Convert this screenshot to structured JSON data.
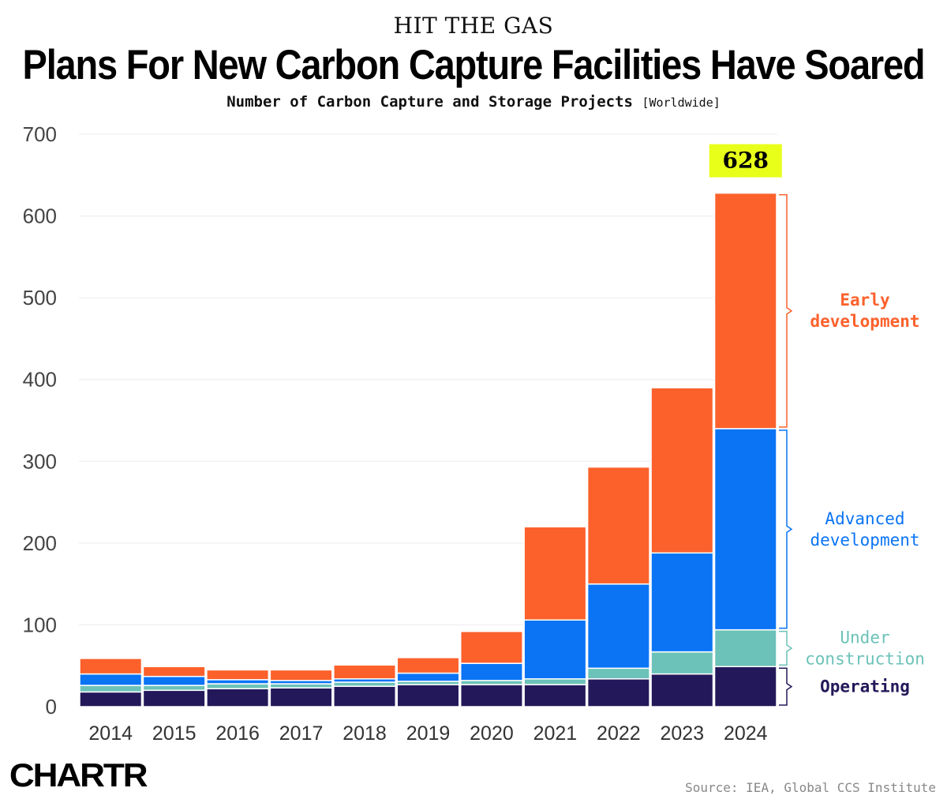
{
  "header": {
    "kicker": "HIT THE GAS",
    "title": "Plans For New Carbon Capture Facilities Have Soared",
    "subtitle": "Number of Carbon Capture and Storage Projects",
    "subtitle_scope": "[Worldwide]"
  },
  "footer": {
    "logo": "CHARTR",
    "source": "Source: IEA, Global CCS Institute"
  },
  "colors": {
    "operating": "#23195a",
    "under_construction": "#6cc2b8",
    "advanced_development": "#0a74f5",
    "early_development": "#fc612c",
    "highlight": "#e8ff1a"
  },
  "chart_data": {
    "type": "bar",
    "stacked": true,
    "title": "Plans For New Carbon Capture Facilities Have Soared",
    "ylabel": "Number of Carbon Capture and Storage Projects",
    "categories": [
      "2014",
      "2015",
      "2016",
      "2017",
      "2018",
      "2019",
      "2020",
      "2021",
      "2022",
      "2023",
      "2024"
    ],
    "yticks": [
      0,
      100,
      200,
      300,
      400,
      500,
      600,
      700
    ],
    "ylim": [
      0,
      700
    ],
    "grid": true,
    "legend_placement": "right",
    "series": [
      {
        "name": "Operating",
        "color": "#23195a",
        "values": [
          18,
          20,
          22,
          23,
          25,
          27,
          27,
          27,
          34,
          40,
          49
        ]
      },
      {
        "name": "Under construction",
        "color": "#6cc2b8",
        "values": [
          8,
          6,
          6,
          5,
          5,
          4,
          5,
          7,
          13,
          27,
          45
        ]
      },
      {
        "name": "Advanced development",
        "color": "#0a74f5",
        "values": [
          14,
          11,
          5,
          4,
          4,
          10,
          21,
          72,
          103,
          121,
          246
        ]
      },
      {
        "name": "Early development",
        "color": "#fc612c",
        "values": [
          19,
          12,
          12,
          13,
          17,
          19,
          39,
          114,
          143,
          202,
          288
        ]
      }
    ],
    "totals": [
      59,
      49,
      45,
      45,
      51,
      60,
      92,
      220,
      293,
      390,
      628
    ],
    "annotations": [
      {
        "category": "2024",
        "text": "628"
      }
    ],
    "legend": [
      {
        "lines": [
          "Early",
          "development"
        ],
        "color": "#fc612c"
      },
      {
        "lines": [
          "Advanced",
          "development"
        ],
        "color": "#0a74f5"
      },
      {
        "lines": [
          "Under",
          "construction"
        ],
        "color": "#6cc2b8"
      },
      {
        "lines": [
          "Operating"
        ],
        "color": "#23195a"
      }
    ]
  }
}
